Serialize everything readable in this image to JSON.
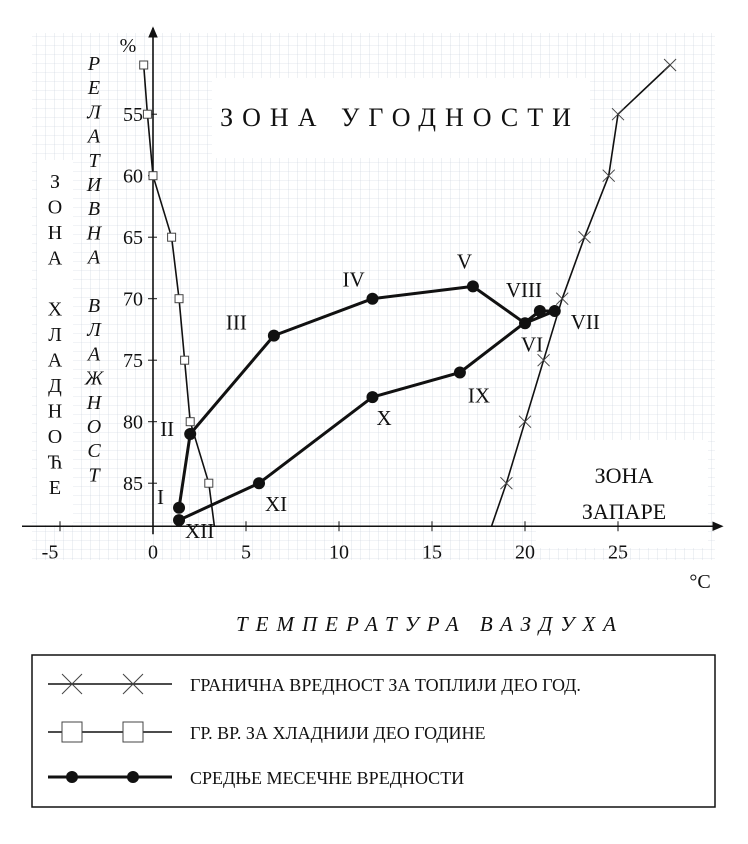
{
  "chart_data": {
    "type": "line",
    "title": "",
    "xlabel": "ТЕМПЕРАТУРА ВАЗДУХА",
    "ylabel": "РЕЛАТИВНА ВЛАЖНОСТ",
    "y_unit": "%",
    "x_unit": "°C",
    "xlim": [
      -6,
      29
    ],
    "ylim": [
      88.5,
      50
    ],
    "y_axis_inverted": true,
    "x_ticks": [
      -5,
      0,
      5,
      10,
      15,
      20,
      25
    ],
    "y_ticks": [
      55,
      60,
      65,
      70,
      75,
      80,
      85
    ],
    "grid": true,
    "zone_labels": {
      "comfort": "ЗОНА УГОДНОСТИ",
      "cold": [
        "З",
        "О",
        "Н",
        "А",
        "",
        "Х",
        "Л",
        "А",
        "Д",
        "Н",
        "О",
        "Ћ",
        "Е"
      ],
      "humid": [
        "ЗОНА",
        "ЗАПАРЕ"
      ]
    },
    "series": [
      {
        "name": "ГРАНИЧНА ВРЕДНОСТ ЗА ТОПЛИЈИ ДЕО ГОД.",
        "marker": "x",
        "points": [
          {
            "x": 18.2,
            "y": 88.5
          },
          {
            "x": 19.0,
            "y": 85
          },
          {
            "x": 20.0,
            "y": 80
          },
          {
            "x": 21.0,
            "y": 75
          },
          {
            "x": 22.0,
            "y": 70
          },
          {
            "x": 23.2,
            "y": 65
          },
          {
            "x": 24.5,
            "y": 60
          },
          {
            "x": 25.0,
            "y": 55
          },
          {
            "x": 27.8,
            "y": 51
          }
        ]
      },
      {
        "name": "ГР. ВР. ЗА ХЛАДНИЈИ ДЕО ГОДИНЕ",
        "marker": "square",
        "points": [
          {
            "x": -0.5,
            "y": 51
          },
          {
            "x": -0.3,
            "y": 55
          },
          {
            "x": 0.0,
            "y": 60
          },
          {
            "x": 1.0,
            "y": 65
          },
          {
            "x": 1.4,
            "y": 70
          },
          {
            "x": 1.7,
            "y": 75
          },
          {
            "x": 2.0,
            "y": 80
          },
          {
            "x": 3.0,
            "y": 85
          },
          {
            "x": 3.3,
            "y": 88.5
          }
        ]
      },
      {
        "name": "СРЕДЊЕ МЕСЕЧНЕ ВРЕДНОСТИ",
        "marker": "dot",
        "points": [
          {
            "x": 1.4,
            "y": 87.0,
            "label": "I"
          },
          {
            "x": 2.0,
            "y": 81.0,
            "label": "II"
          },
          {
            "x": 6.5,
            "y": 73.0,
            "label": "III"
          },
          {
            "x": 11.8,
            "y": 70.0,
            "label": "IV"
          },
          {
            "x": 17.2,
            "y": 69.0,
            "label": "V"
          },
          {
            "x": 20.0,
            "y": 72.0,
            "label": "VI"
          },
          {
            "x": 21.6,
            "y": 71.0,
            "label": "VII"
          },
          {
            "x": 20.8,
            "y": 71.0,
            "label": "VIII"
          },
          {
            "x": 16.5,
            "y": 76.0,
            "label": "IX"
          },
          {
            "x": 11.8,
            "y": 78.0,
            "label": "X"
          },
          {
            "x": 5.7,
            "y": 85.0,
            "label": "XI"
          },
          {
            "x": 1.4,
            "y": 88.0,
            "label": "XII"
          }
        ]
      }
    ],
    "legend": {
      "placement": "bottom",
      "entries": [
        "ГРАНИЧНА ВРЕДНОСТ ЗА ТОПЛИЈИ ДЕО ГОД.",
        "ГР. ВР. ЗА ХЛАДНИЈИ ДЕО ГОДИНЕ",
        "СРЕДЊЕ МЕСЕЧНЕ ВРЕДНОСТИ"
      ]
    }
  }
}
